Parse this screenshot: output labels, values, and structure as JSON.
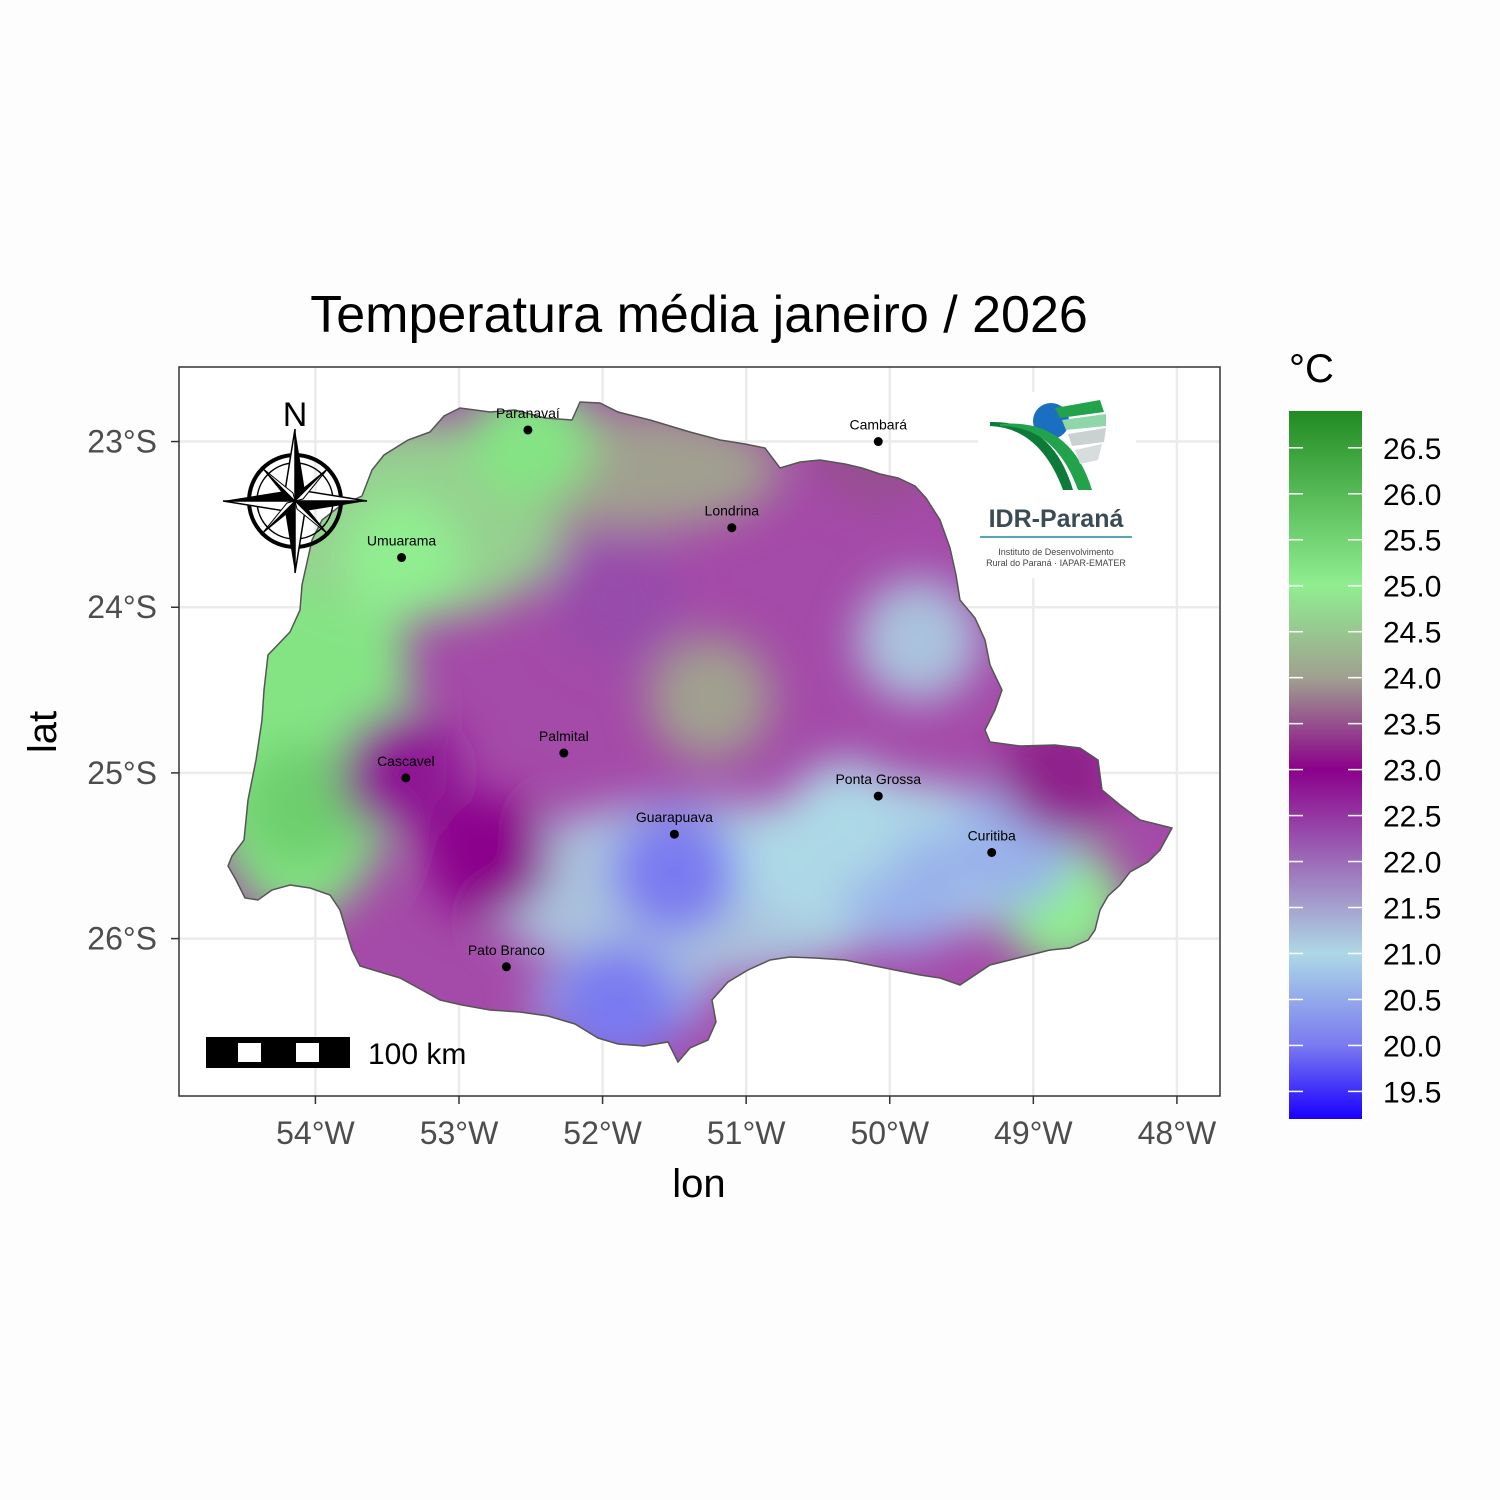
{
  "title": "Temperatura média janeiro / 2026",
  "x_axis": {
    "label": "lon",
    "ticks": [
      {
        "value": -54,
        "label": "54°W"
      },
      {
        "value": -53,
        "label": "53°W"
      },
      {
        "value": -52,
        "label": "52°W"
      },
      {
        "value": -51,
        "label": "51°W"
      },
      {
        "value": -50,
        "label": "50°W"
      },
      {
        "value": -49,
        "label": "49°W"
      },
      {
        "value": -48,
        "label": "48°W"
      }
    ]
  },
  "y_axis": {
    "label": "lat",
    "ticks": [
      {
        "value": -23,
        "label": "23°S"
      },
      {
        "value": -24,
        "label": "24°S"
      },
      {
        "value": -25,
        "label": "25°S"
      },
      {
        "value": -26,
        "label": "26°S"
      }
    ]
  },
  "legend": {
    "title": "°C",
    "ticks": [
      "26.5",
      "26.0",
      "25.5",
      "25.0",
      "24.5",
      "24.0",
      "23.5",
      "23.0",
      "22.5",
      "22.0",
      "21.5",
      "21.0",
      "20.5",
      "20.0",
      "19.5"
    ],
    "range": [
      19.2,
      26.9
    ],
    "colors": [
      "#1a00ff",
      "#7a7af0",
      "#add8e6",
      "#8b008b",
      "#a0a090",
      "#90ee90",
      "#228b22"
    ]
  },
  "compass": {
    "label": "N"
  },
  "scale_bar": {
    "label": "100 km"
  },
  "logo": {
    "name": "IDR-Paraná",
    "line1": "Instituto de Desenvolvimento",
    "line2": "Rural do Paraná · IAPAR-EMATER"
  },
  "cities": [
    {
      "name": "Paranavaí",
      "lon": -52.52,
      "lat": -22.93
    },
    {
      "name": "Cambará",
      "lon": -50.08,
      "lat": -23.0
    },
    {
      "name": "Londrina",
      "lon": -51.1,
      "lat": -23.52
    },
    {
      "name": "Umuarama",
      "lon": -53.4,
      "lat": -23.7
    },
    {
      "name": "Palmital",
      "lon": -52.27,
      "lat": -24.88
    },
    {
      "name": "Cascavel",
      "lon": -53.37,
      "lat": -25.03
    },
    {
      "name": "Ponta Grossa",
      "lon": -50.08,
      "lat": -25.14
    },
    {
      "name": "Guarapuava",
      "lon": -51.5,
      "lat": -25.37
    },
    {
      "name": "Curitiba",
      "lon": -49.29,
      "lat": -25.48
    },
    {
      "name": "Pato Branco",
      "lon": -52.67,
      "lat": -26.17
    }
  ],
  "chart_data": {
    "type": "heatmap",
    "title": "Temperatura média janeiro / 2026",
    "xlabel": "lon",
    "ylabel": "lat",
    "xlim": [
      -54.95,
      -47.7
    ],
    "ylim": [
      -26.95,
      -22.55
    ],
    "colorbar": {
      "title": "°C",
      "min": 19.2,
      "max": 26.9
    },
    "temperature_hotspots": [
      {
        "lon": -52.5,
        "lat": -23.0,
        "value": 25.2
      },
      {
        "lon": -53.4,
        "lat": -23.7,
        "value": 25.0
      },
      {
        "lon": -54.1,
        "lat": -25.2,
        "value": 25.6
      },
      {
        "lon": -48.8,
        "lat": -25.8,
        "value": 25.0
      },
      {
        "lon": -51.25,
        "lat": -24.55,
        "value": 24.0
      },
      {
        "lon": -53.4,
        "lat": -25.0,
        "value": 22.8
      },
      {
        "lon": -51.9,
        "lat": -23.95,
        "value": 22.3
      },
      {
        "lon": -51.5,
        "lat": -25.6,
        "value": 20.0
      },
      {
        "lon": -51.9,
        "lat": -26.4,
        "value": 20.0
      },
      {
        "lon": -49.9,
        "lat": -25.7,
        "value": 20.6
      },
      {
        "lon": -49.15,
        "lat": -25.45,
        "value": 20.6
      },
      {
        "lon": -50.3,
        "lat": -25.3,
        "value": 21.0
      },
      {
        "lon": -49.8,
        "lat": -24.2,
        "value": 21.2
      },
      {
        "lon": -50.1,
        "lat": -23.0,
        "value": 23.5
      },
      {
        "lon": -52.8,
        "lat": -25.5,
        "value": 23.0
      },
      {
        "lon": -48.8,
        "lat": -25.0,
        "value": 23.2
      }
    ]
  }
}
